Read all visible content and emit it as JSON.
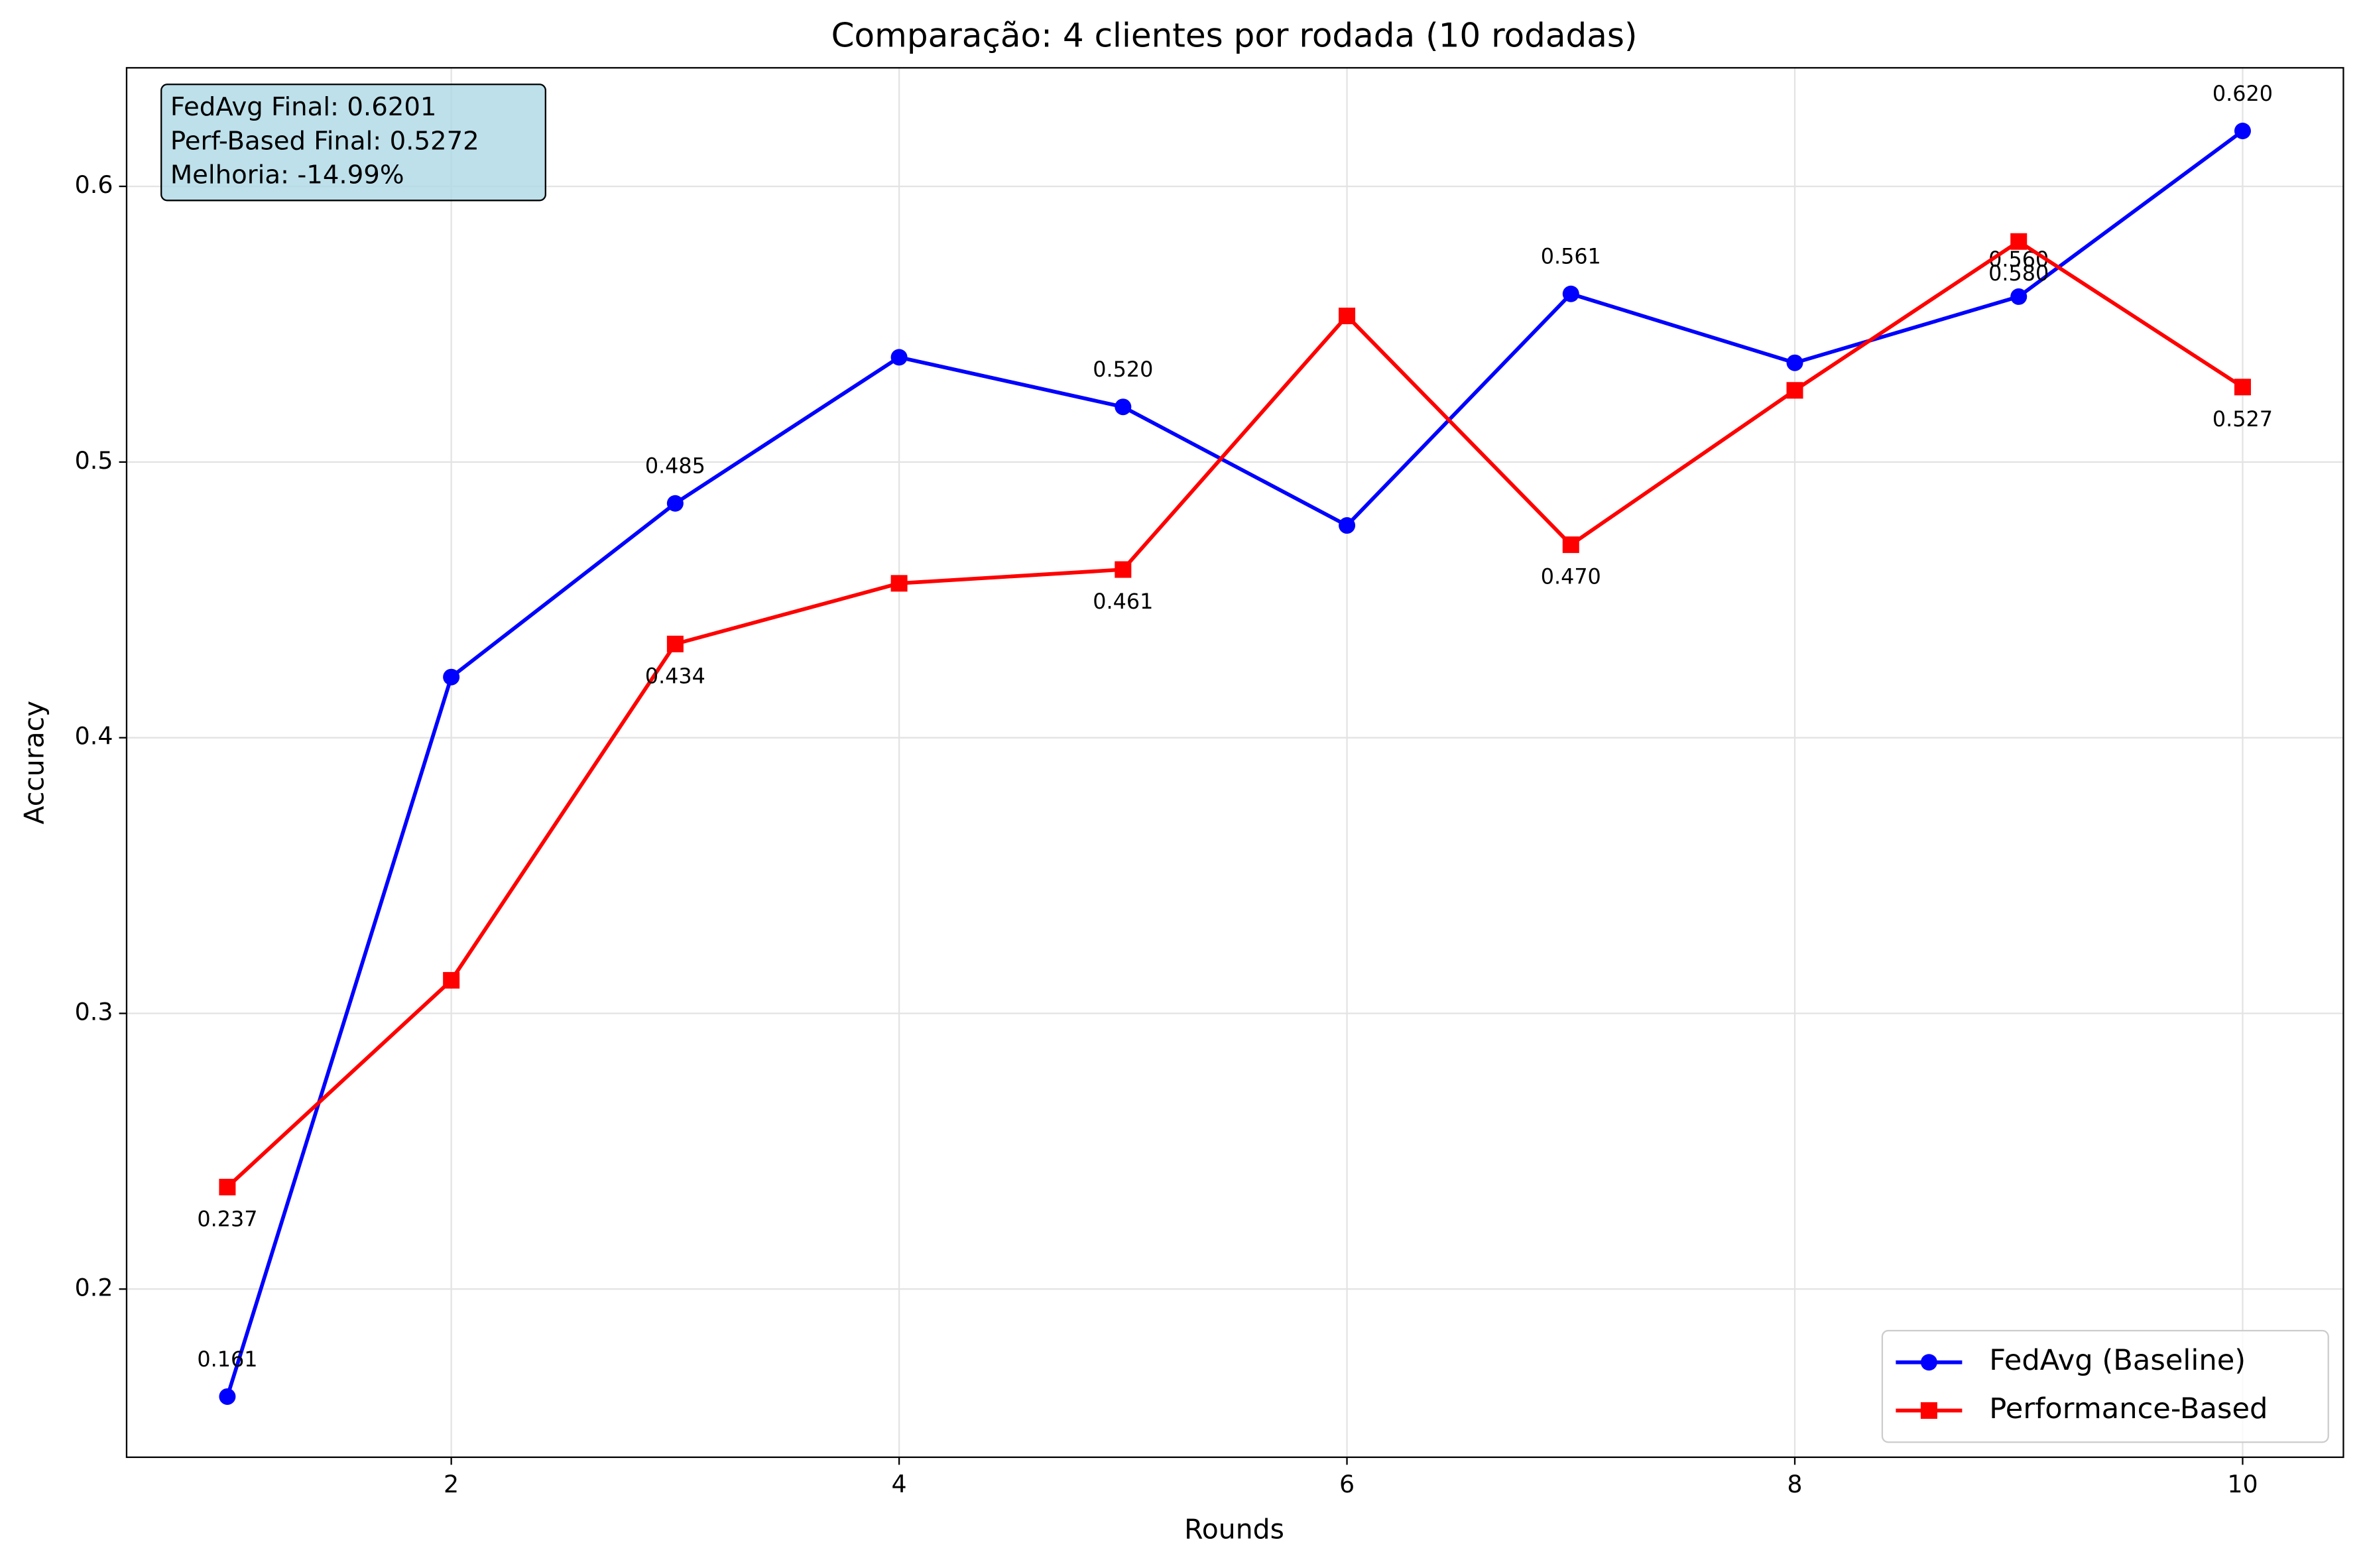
{
  "chart_data": {
    "type": "line",
    "title": "Comparação: 4 clientes por rodada (10 rodadas)",
    "x_label": "Rounds",
    "y_label": "Accuracy",
    "x": [
      1,
      2,
      3,
      4,
      5,
      6,
      7,
      8,
      9,
      10
    ],
    "series": [
      {
        "name": "FedAvg (Baseline)",
        "color": "#0000ff",
        "marker": "circle",
        "values": [
          0.161,
          0.422,
          0.485,
          0.538,
          0.52,
          0.477,
          0.561,
          0.536,
          0.56,
          0.6201
        ],
        "value_labels": [
          "0.161",
          null,
          "0.485",
          null,
          "0.520",
          null,
          "0.561",
          null,
          "0.560",
          "0.620"
        ]
      },
      {
        "name": "Performance-Based",
        "color": "#ff0000",
        "marker": "square",
        "values": [
          0.237,
          0.312,
          0.434,
          0.456,
          0.461,
          0.553,
          0.47,
          0.526,
          0.58,
          0.5272
        ],
        "value_labels": [
          "0.237",
          null,
          "0.434",
          null,
          "0.461",
          null,
          "0.470",
          null,
          "0.580",
          "0.527"
        ]
      }
    ],
    "xlim": [
      0.55,
      10.45
    ],
    "ylim": [
      0.139,
      0.643
    ],
    "xticks": [
      2,
      4,
      6,
      8,
      10
    ],
    "yticks": [
      0.2,
      0.3,
      0.4,
      0.5,
      0.6
    ],
    "grid": true,
    "legend": "lower right",
    "annotations": [
      "FedAvg Final: 0.6201",
      "Perf-Based Final: 0.5272",
      "Melhoria: -14.99%"
    ]
  }
}
